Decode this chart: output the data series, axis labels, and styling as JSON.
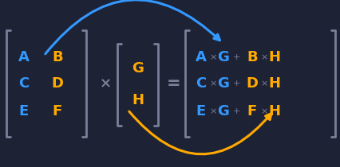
{
  "bg_color": "#1e2235",
  "blue": "#3399ff",
  "orange": "#ffaa00",
  "gray": "#7a8099",
  "figsize": [
    4.27,
    2.1
  ],
  "dpi": 100,
  "left_matrix_blue": [
    "A",
    "C",
    "E"
  ],
  "left_matrix_orange": [
    "B",
    "D",
    "F"
  ],
  "vector_orange": [
    "G",
    "H"
  ],
  "result_blue_letters": [
    "A",
    "C",
    "E"
  ],
  "result_blue_g": [
    "G",
    "G",
    "G"
  ],
  "result_orange_letters": [
    "B",
    "D",
    "F"
  ],
  "result_orange_h": [
    "H",
    "H",
    "H"
  ],
  "fontsize_large": 13,
  "fontsize_small": 8,
  "bracket_lw": 2.0,
  "bracket_tab": 5
}
